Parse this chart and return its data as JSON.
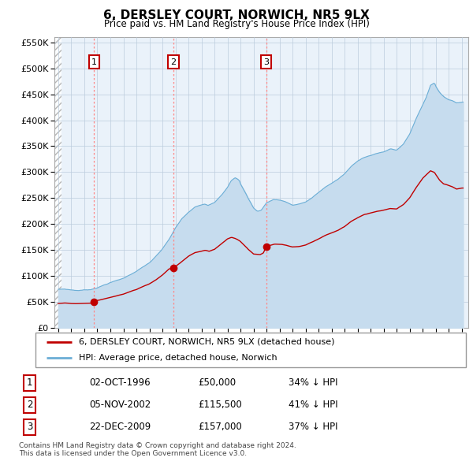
{
  "title": "6, DERSLEY COURT, NORWICH, NR5 9LX",
  "subtitle": "Price paid vs. HM Land Registry's House Price Index (HPI)",
  "ylim": [
    0,
    560000
  ],
  "xlim_start": 1993.7,
  "xlim_end": 2025.5,
  "sale_dates": [
    1996.75,
    2002.84,
    2009.97
  ],
  "sale_prices": [
    50000,
    115500,
    157000
  ],
  "sale_labels": [
    "1",
    "2",
    "3"
  ],
  "legend_line1": "6, DERSLEY COURT, NORWICH, NR5 9LX (detached house)",
  "legend_line2": "HPI: Average price, detached house, Norwich",
  "table_rows": [
    [
      "1",
      "02-OCT-1996",
      "£50,000",
      "34% ↓ HPI"
    ],
    [
      "2",
      "05-NOV-2002",
      "£115,500",
      "41% ↓ HPI"
    ],
    [
      "3",
      "22-DEC-2009",
      "£157,000",
      "37% ↓ HPI"
    ]
  ],
  "footnote": "Contains HM Land Registry data © Crown copyright and database right 2024.\nThis data is licensed under the Open Government Licence v3.0.",
  "hpi_color": "#6BAED6",
  "hpi_fill_color": "#C6DCEE",
  "sale_color": "#C00000",
  "vline_color": "#FF8888",
  "plot_bg": "#EAF2FA",
  "grid_color": "#BBCCDD",
  "hatch_end": 1994.25
}
